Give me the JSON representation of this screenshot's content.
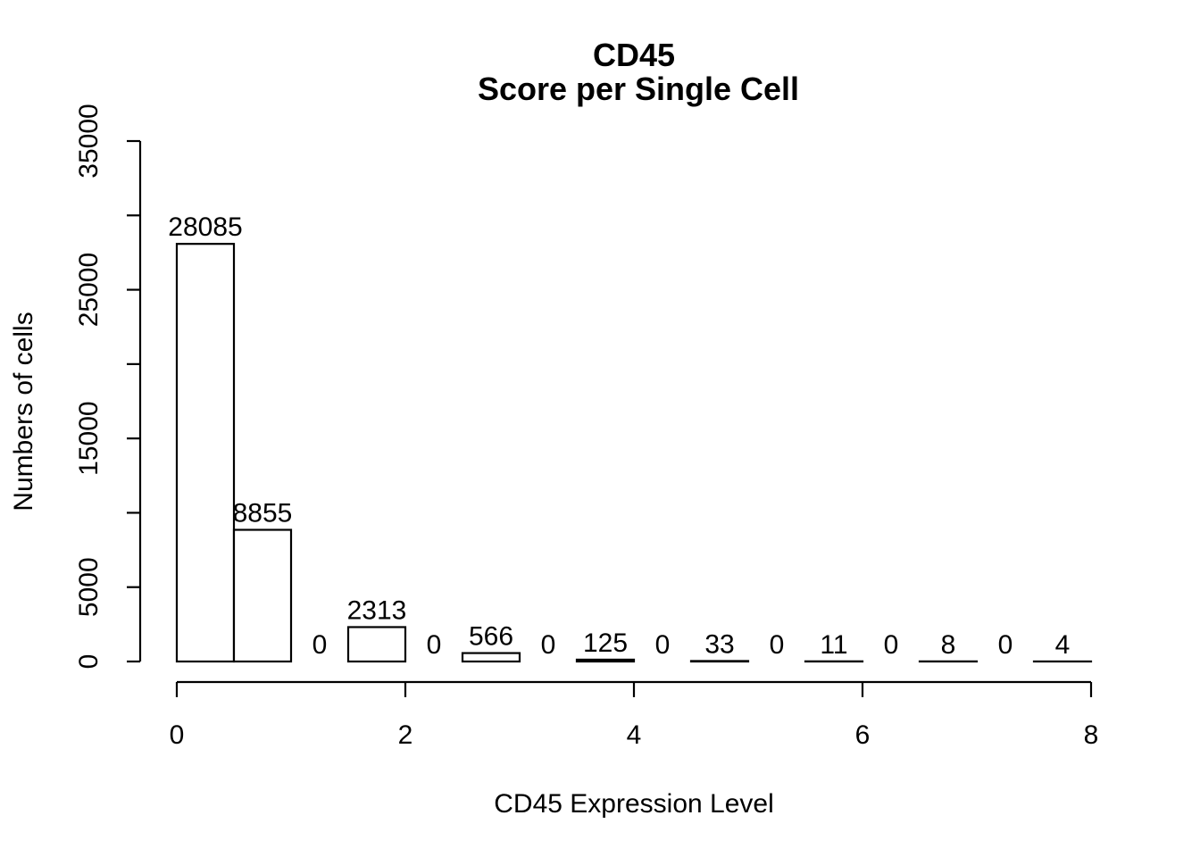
{
  "chart_data": {
    "type": "bar",
    "title": "CD45",
    "subtitle": "Score per Single Cell",
    "xlabel": "CD45 Expression Level",
    "ylabel": "Numbers of cells",
    "bin_edges": [
      0,
      0.5,
      1,
      1.5,
      2,
      2.5,
      3,
      3.5,
      4,
      4.5,
      5,
      5.5,
      6,
      6.5,
      7,
      7.5,
      8
    ],
    "values": [
      28085,
      8855,
      0,
      2313,
      0,
      566,
      0,
      125,
      0,
      33,
      0,
      11,
      0,
      8,
      0,
      4
    ],
    "data_labels": [
      "28085",
      "8855",
      "0",
      "2313",
      "0",
      "566",
      "0",
      "125",
      "0",
      "33",
      "0",
      "11",
      "0",
      "8",
      "0",
      "4"
    ],
    "xlim": [
      0,
      8
    ],
    "ylim": [
      0,
      35000
    ],
    "x_ticks": [
      0,
      2,
      4,
      6,
      8
    ],
    "x_tick_labels": [
      "0",
      "2",
      "4",
      "6",
      "8"
    ],
    "y_ticks": [
      0,
      5000,
      10000,
      15000,
      20000,
      25000,
      30000,
      35000
    ],
    "y_tick_labels": [
      "0",
      "5000",
      "",
      "15000",
      "",
      "25000",
      "",
      "35000"
    ],
    "grid": false,
    "bar_fill": "#ffffff",
    "bar_stroke": "#000000"
  }
}
